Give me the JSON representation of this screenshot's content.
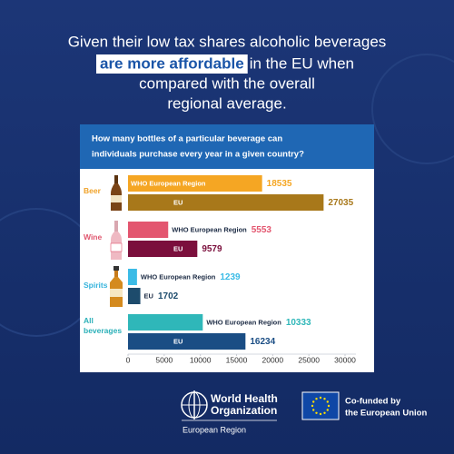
{
  "headline": {
    "line1": "Given their low tax shares alcoholic beverages",
    "highlight": "are more affordable",
    "line2_rest": "in the EU when",
    "line3": "compared with the overall",
    "line4": "regional average."
  },
  "chart_data": {
    "type": "bar",
    "orientation": "horizontal",
    "title": [
      "How many bottles of a particular beverage can",
      "individuals purchase every year in a given country?"
    ],
    "categories": [
      "Beer",
      "Wine",
      "Spirits",
      "All beverages"
    ],
    "category_colors": [
      "#f0a228",
      "#e0566e",
      "#35b3dc",
      "#2bb0b8"
    ],
    "series": [
      {
        "name": "WHO European Region",
        "colors": [
          "#f5a623",
          "#e3566f",
          "#3bbbe6",
          "#2fb7b9"
        ],
        "values": [
          18535,
          5553,
          1239,
          10333
        ]
      },
      {
        "name": "EU",
        "colors": [
          "#a8781a",
          "#7b0f3c",
          "#1d4b6c",
          "#1a4d84"
        ],
        "values": [
          27035,
          9579,
          1702,
          16234
        ]
      }
    ],
    "xlim": [
      0,
      30000
    ],
    "xticks": [
      0,
      5000,
      10000,
      15000,
      20000,
      25000,
      30000
    ]
  },
  "footer": {
    "who_lines": [
      "World Health",
      "Organization"
    ],
    "who_region": "European Region",
    "eu_lines": [
      "Co-funded by",
      "the European Union"
    ]
  }
}
